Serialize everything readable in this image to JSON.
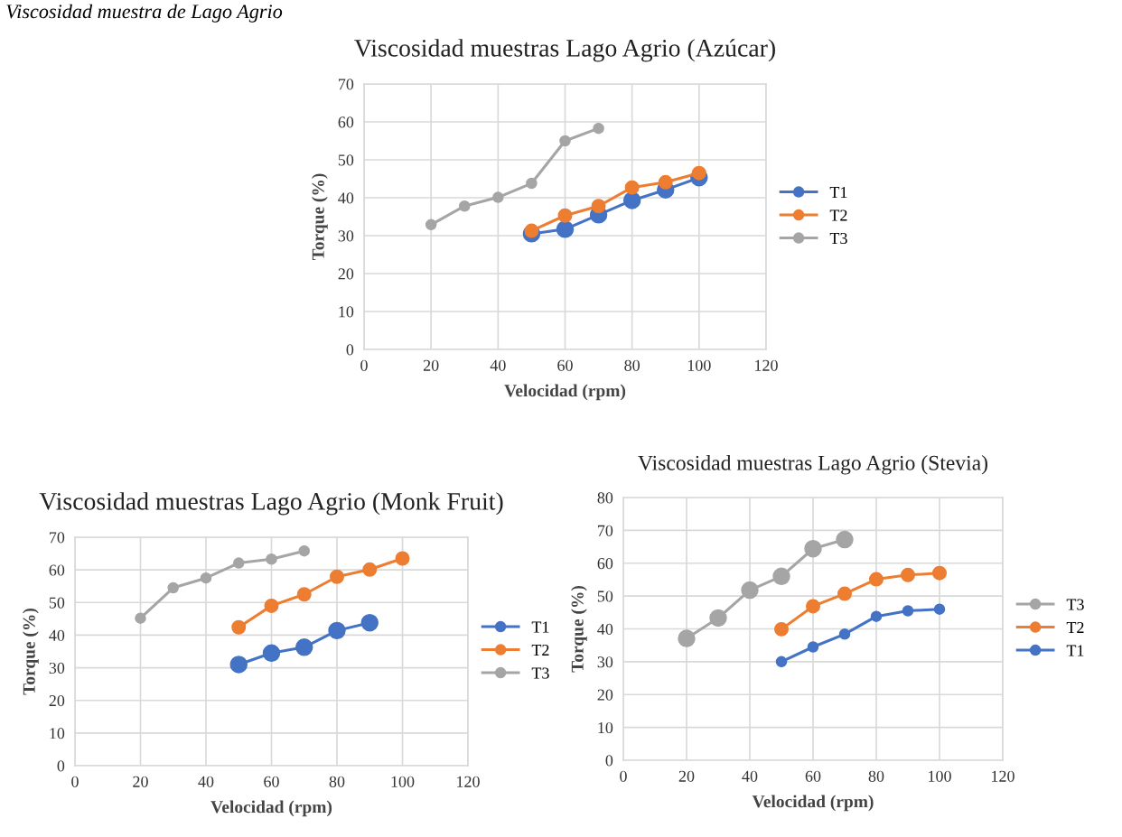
{
  "chart_data": [
    {
      "type": "line",
      "title": "Viscosidad muestras Lago Agrio (Azúcar)",
      "xlabel": "Velocidad (rpm)",
      "ylabel": "Torque (%)",
      "annotations": [
        "Viscosidad muestra de Lago Agrio"
      ],
      "xlim": [
        0,
        120
      ],
      "xticks": [
        0,
        20,
        40,
        60,
        80,
        100,
        120
      ],
      "ylim": [
        0,
        70
      ],
      "yticks": [
        0,
        10,
        20,
        30,
        40,
        50,
        60,
        70
      ],
      "grid": true,
      "legend": "right",
      "marker": "circle",
      "line_style": "solid",
      "series": [
        {
          "name": "T1",
          "color": "#4472c4",
          "x": [
            50,
            60,
            70,
            80,
            90,
            100
          ],
          "values": [
            30.5,
            31.7,
            35.5,
            39.3,
            42.1,
            45.3
          ]
        },
        {
          "name": "T2",
          "color": "#ed7d31",
          "x": [
            50,
            60,
            70,
            80,
            90,
            100
          ],
          "values": [
            31.3,
            35.3,
            37.8,
            42.7,
            44.1,
            46.5
          ]
        },
        {
          "name": "T3",
          "color": "#a5a5a5",
          "x": [
            20,
            30,
            40,
            50,
            60,
            70
          ],
          "values": [
            32.9,
            37.8,
            40.1,
            43.8,
            55.0,
            58.3
          ]
        }
      ]
    },
    {
      "type": "line",
      "title": "Viscosidad muestras Lago Agrio (Monk Fruit)",
      "xlabel": "Velocidad (rpm)",
      "ylabel": "Torque (%)",
      "xlim": [
        0,
        120
      ],
      "xticks": [
        0,
        20,
        40,
        60,
        80,
        100,
        120
      ],
      "ylim": [
        0,
        70
      ],
      "yticks": [
        0,
        10,
        20,
        30,
        40,
        50,
        60,
        70
      ],
      "grid": true,
      "legend": "right",
      "marker": "circle",
      "line_style": "solid",
      "series": [
        {
          "name": "T1",
          "color": "#4472c4",
          "x": [
            50,
            60,
            70,
            80,
            90
          ],
          "values": [
            31.0,
            34.5,
            36.3,
            41.4,
            43.8
          ]
        },
        {
          "name": "T2",
          "color": "#ed7d31",
          "x": [
            50,
            60,
            70,
            80,
            90,
            100
          ],
          "values": [
            42.4,
            49.0,
            52.5,
            57.9,
            60.1,
            63.5
          ]
        },
        {
          "name": "T3",
          "color": "#a5a5a5",
          "x": [
            20,
            30,
            40,
            50,
            60,
            70
          ],
          "values": [
            45.2,
            54.5,
            57.5,
            62.1,
            63.3,
            65.8
          ]
        }
      ]
    },
    {
      "type": "line",
      "title": "Viscosidad muestras Lago Agrio (Stevia)",
      "xlabel": "Velocidad (rpm)",
      "ylabel": "Torque (%)",
      "xlim": [
        0,
        120
      ],
      "xticks": [
        0,
        20,
        40,
        60,
        80,
        100,
        120
      ],
      "ylim": [
        0,
        80
      ],
      "yticks": [
        0,
        10,
        20,
        30,
        40,
        50,
        60,
        70,
        80
      ],
      "grid": true,
      "legend": "right",
      "marker": "circle",
      "line_style": "solid",
      "series": [
        {
          "name": "T3",
          "color": "#a5a5a5",
          "x": [
            20,
            30,
            40,
            50,
            60,
            70
          ],
          "values": [
            37.1,
            43.3,
            51.8,
            56.0,
            64.4,
            67.2
          ]
        },
        {
          "name": "T2",
          "color": "#ed7d31",
          "x": [
            50,
            60,
            70,
            80,
            90,
            100
          ],
          "values": [
            39.9,
            46.9,
            50.7,
            55.1,
            56.4,
            57.0
          ]
        },
        {
          "name": "T1",
          "color": "#4472c4",
          "x": [
            50,
            60,
            70,
            80,
            90,
            100
          ],
          "values": [
            30.0,
            34.5,
            38.4,
            43.8,
            45.5,
            46.0
          ]
        }
      ]
    }
  ]
}
